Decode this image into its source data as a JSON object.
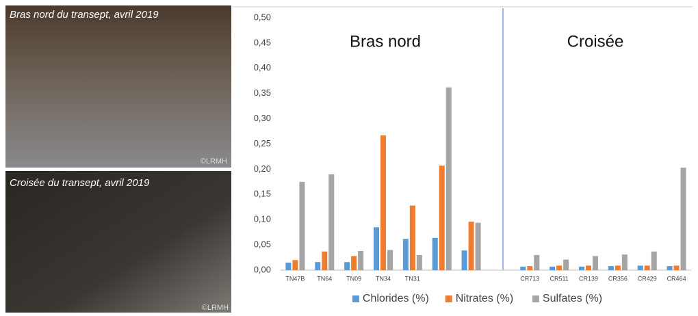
{
  "photos": [
    {
      "caption": "Bras nord du transept,  avril 2019",
      "credit": "©LRMH"
    },
    {
      "caption": "Croisée du transept,  avril 2019",
      "credit": "©LRMH"
    }
  ],
  "chart_data": {
    "type": "bar",
    "annotations": [
      "Bras nord",
      "Croisée"
    ],
    "categories": [
      "TN47B",
      "TN64",
      "TN09",
      "TN34",
      "TN31",
      null,
      null,
      null,
      "CR713",
      "CR511",
      "CR139",
      "CR356",
      "CR429",
      "CR464"
    ],
    "series": [
      {
        "name": "Chlorides (%)",
        "color": "#5b9bd5",
        "values": [
          0.015,
          0.016,
          0.016,
          0.085,
          0.062,
          0.064,
          0.039,
          null,
          0.007,
          0.007,
          0.007,
          0.008,
          0.009,
          0.008
        ]
      },
      {
        "name": "Nitrates (%)",
        "color": "#ed7d31",
        "values": [
          0.02,
          0.037,
          0.028,
          0.267,
          0.128,
          0.207,
          0.096,
          null,
          0.008,
          0.009,
          0.009,
          0.009,
          0.009,
          0.009
        ]
      },
      {
        "name": "Sulfates (%)",
        "color": "#a5a5a5",
        "values": [
          0.175,
          0.19,
          0.038,
          0.04,
          0.03,
          0.362,
          0.094,
          null,
          0.03,
          0.021,
          0.028,
          0.031,
          0.037,
          0.203
        ]
      }
    ],
    "ylim": [
      0,
      0.5
    ],
    "yticks": [
      {
        "value": 0,
        "label": "0,00"
      },
      {
        "value": 0.05,
        "label": "0,05"
      },
      {
        "value": 0.1,
        "label": "0,10"
      },
      {
        "value": 0.15,
        "label": "0,15"
      },
      {
        "value": 0.2,
        "label": "0,20"
      },
      {
        "value": 0.25,
        "label": "0,25"
      },
      {
        "value": 0.3,
        "label": "0,30"
      },
      {
        "value": 0.35,
        "label": "0,35"
      },
      {
        "value": 0.4,
        "label": "0,40"
      },
      {
        "value": 0.45,
        "label": "0,45"
      },
      {
        "value": 0.5,
        "label": "0,50"
      }
    ],
    "legend": "bottom",
    "grid": false
  }
}
